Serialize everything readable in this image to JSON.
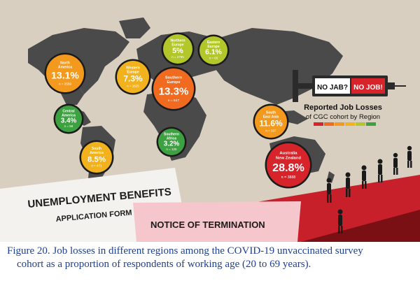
{
  "chart_data": {
    "type": "map-bubble",
    "title": "Reported Job Losses",
    "subtitle": "of CGC cohort by Region",
    "unit": "%",
    "regions": [
      {
        "name_lines": [
          "North",
          "America"
        ],
        "pct": 13.1,
        "value_label": "13.1%",
        "n_label": "n = 2559",
        "color": "#f39a1e"
      },
      {
        "name_lines": [
          "Central",
          "America"
        ],
        "pct": 3.4,
        "value_label": "3.4%",
        "n_label": "n = 58",
        "color": "#3da141"
      },
      {
        "name_lines": [
          "South",
          "America"
        ],
        "pct": 8.5,
        "value_label": "8.5%",
        "n_label": "n = 471",
        "color": "#f2b21e"
      },
      {
        "name_lines": [
          "Western",
          "Europe"
        ],
        "pct": 7.3,
        "value_label": "7.3%",
        "n_label": "n = 1625",
        "color": "#f2b21e"
      },
      {
        "name_lines": [
          "Northern",
          "Europe"
        ],
        "pct": 5,
        "value_label": "5%",
        "n_label": "n = 2795",
        "color": "#b3c72a"
      },
      {
        "name_lines": [
          "Eastern",
          "Europe"
        ],
        "pct": 6.1,
        "value_label": "6.1%",
        "n_label": "n = 66",
        "color": "#b3c72a"
      },
      {
        "name_lines": [
          "Southern",
          "Europe"
        ],
        "pct": 13.3,
        "value_label": "13.3%",
        "n_label": "n = 547",
        "color": "#f06a1f"
      },
      {
        "name_lines": [
          "Southern",
          "Africa"
        ],
        "pct": 3.2,
        "value_label": "3.2%",
        "n_label": "n = 125",
        "color": "#3da141"
      },
      {
        "name_lines": [
          "South",
          "East Asia"
        ],
        "pct": 11.6,
        "value_label": "11.6%",
        "n_label": "n = 337",
        "color": "#f39a1e"
      },
      {
        "name_lines": [
          "Australia",
          "New Zealand"
        ],
        "pct": 28.8,
        "value_label": "28.8%",
        "n_label": "n = 3888",
        "color": "#d7232a"
      }
    ],
    "legend_colors": [
      "#d7232a",
      "#f06a1f",
      "#f39a1e",
      "#f2b21e",
      "#b3c72a",
      "#3da141"
    ]
  },
  "syringe": {
    "left_text": "NO JAB?",
    "right_text": "NO JOB!"
  },
  "forms": {
    "benefits_title": "UNEMPLOYMENT BENEFITS",
    "benefits_subtitle": "APPLICATION FORM",
    "termination_title": "NOTICE OF TERMINATION"
  },
  "caption": {
    "line1": "Figure 20.  Job losses in different regions among the COVID-19 unvaccinated survey",
    "line2": "cohort as a proportion of respondents of working age (20 to 69 years)."
  }
}
